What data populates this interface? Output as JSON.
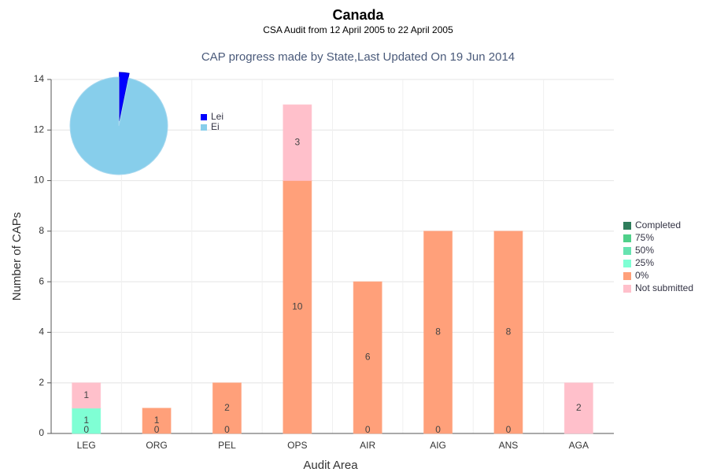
{
  "chart_data": [
    {
      "type": "bar",
      "stacked": true,
      "title": "Canada",
      "subtitle": "CSA Audit from 12 April 2005 to 22 April 2005",
      "chart_title": "CAP progress made by State,Last Updated On 19 Jun 2014",
      "x_label": "Audit Area",
      "y_label": "Number of CAPs",
      "categories": [
        "LEG",
        "ORG",
        "PEL",
        "OPS",
        "AIR",
        "AIG",
        "ANS",
        "AGA"
      ],
      "series": [
        {
          "name": "Completed",
          "color": "#2e7d5b",
          "values": [
            0,
            0,
            0,
            0,
            0,
            0,
            0,
            0
          ]
        },
        {
          "name": "75%",
          "color": "#4fd08a",
          "values": [
            0,
            0,
            0,
            0,
            0,
            0,
            0,
            0
          ]
        },
        {
          "name": "50%",
          "color": "#66e3b0",
          "values": [
            0,
            0,
            0,
            0,
            0,
            0,
            0,
            0
          ]
        },
        {
          "name": "25%",
          "color": "#7fffd4",
          "values": [
            1,
            0,
            0,
            0,
            0,
            0,
            0,
            0
          ]
        },
        {
          "name": "0%",
          "color": "#ffa07a",
          "values": [
            0,
            1,
            2,
            10,
            6,
            8,
            8,
            0
          ]
        },
        {
          "name": "Not submitted",
          "color": "#ffc0cb",
          "values": [
            1,
            0,
            0,
            3,
            0,
            0,
            0,
            2
          ]
        }
      ],
      "ylim": [
        0,
        14
      ],
      "yticks": [
        0,
        2,
        4,
        6,
        8,
        10,
        12,
        14
      ],
      "grid": true,
      "legend": "right"
    },
    {
      "type": "pie",
      "categories": [
        "Lei",
        "Ei"
      ],
      "values": [
        1,
        30
      ],
      "colors": [
        "#0000ff",
        "#87ceeb"
      ],
      "legend": "right"
    }
  ]
}
